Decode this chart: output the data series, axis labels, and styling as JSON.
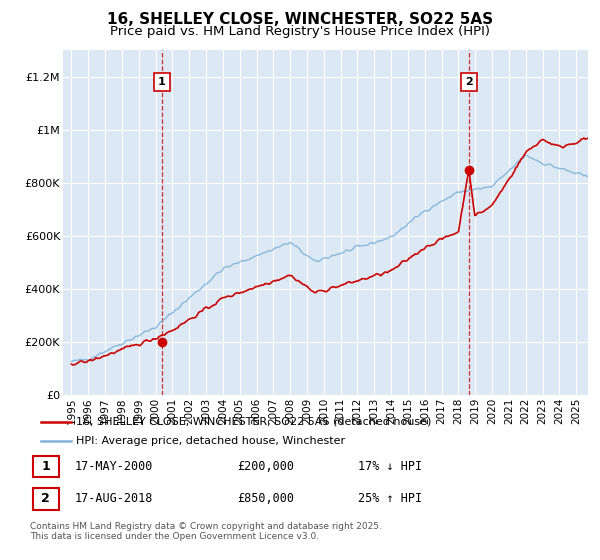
{
  "title": "16, SHELLEY CLOSE, WINCHESTER, SO22 5AS",
  "subtitle": "Price paid vs. HM Land Registry's House Price Index (HPI)",
  "title_fontsize": 11,
  "subtitle_fontsize": 9.5,
  "ylim": [
    0,
    1300000
  ],
  "yticks": [
    0,
    200000,
    400000,
    600000,
    800000,
    1000000,
    1200000
  ],
  "ytick_labels": [
    "£0",
    "£200K",
    "£400K",
    "£600K",
    "£800K",
    "£1M",
    "£1.2M"
  ],
  "xlim_start": 1994.5,
  "xlim_end": 2025.7,
  "xticks": [
    1995,
    1996,
    1997,
    1998,
    1999,
    2000,
    2001,
    2002,
    2003,
    2004,
    2005,
    2006,
    2007,
    2008,
    2009,
    2010,
    2011,
    2012,
    2013,
    2014,
    2015,
    2016,
    2017,
    2018,
    2019,
    2020,
    2021,
    2022,
    2023,
    2024,
    2025
  ],
  "background_color": "#ffffff",
  "plot_bg_color": "#dce9f5",
  "grid_color": "#ffffff",
  "hpi_color": "#7fb3d9",
  "price_color": "#cc0000",
  "sale1_x": 2000.38,
  "sale1_y": 200000,
  "sale2_x": 2018.63,
  "sale2_y": 850000,
  "legend_label1": "16, SHELLEY CLOSE, WINCHESTER, SO22 5AS (detached house)",
  "legend_label2": "HPI: Average price, detached house, Winchester",
  "table_row1": [
    "1",
    "17-MAY-2000",
    "£200,000",
    "17% ↓ HPI"
  ],
  "table_row2": [
    "2",
    "17-AUG-2018",
    "£850,000",
    "25% ↑ HPI"
  ],
  "footer": "Contains HM Land Registry data © Crown copyright and database right 2025.\nThis data is licensed under the Open Government Licence v3.0.",
  "vline1_x": 2000.38,
  "vline2_x": 2018.63
}
